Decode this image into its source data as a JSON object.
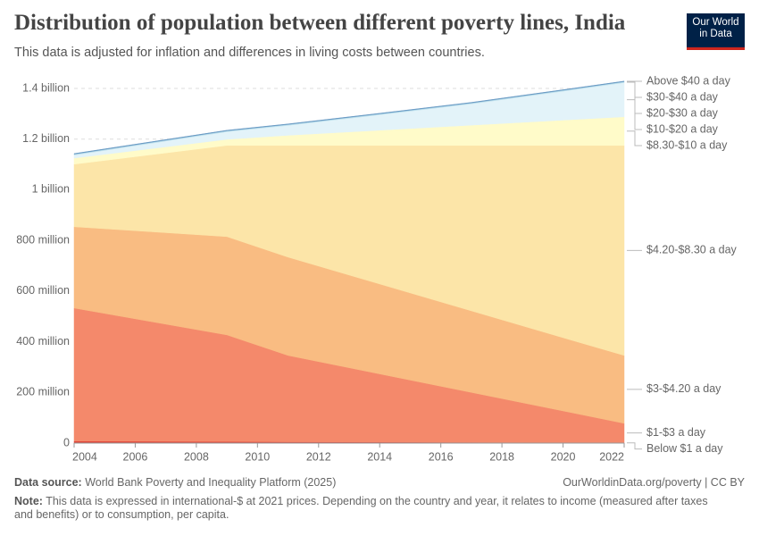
{
  "chart_data": {
    "type": "stacked-area",
    "title": "Distribution of population between different poverty lines, India",
    "subtitle": "This data is adjusted for inflation and differences in living costs between countries.",
    "logo": [
      "Our World",
      "in Data"
    ],
    "x": [
      2004,
      2009,
      2011,
      2014,
      2017,
      2020,
      2022
    ],
    "xlim": [
      2004,
      2022
    ],
    "xticks": [
      2004,
      2006,
      2008,
      2010,
      2012,
      2014,
      2016,
      2018,
      2020,
      2022
    ],
    "ylim": [
      0,
      1400000000
    ],
    "yticks": [
      0,
      {
        "value": 200000000,
        "label": "200 million"
      },
      {
        "value": 400000000,
        "label": "400 million"
      },
      {
        "value": 600000000,
        "label": "600 million"
      },
      {
        "value": 800000000,
        "label": "800 million"
      },
      {
        "value": 1000000000,
        "label": "1 billion"
      },
      {
        "value": 1200000000,
        "label": "1.2 billion"
      },
      {
        "value": 1400000000,
        "label": "1.4 billion"
      }
    ],
    "grid": true,
    "series": [
      {
        "name": "Below $1 a day",
        "color": "#e0473a",
        "label_color": "#c8352b",
        "values": [
          8000000,
          6000000,
          5000000,
          4000000,
          3000000,
          2000000,
          2000000
        ]
      },
      {
        "name": "$1-$3 a day",
        "color": "#f4896b",
        "label_color": "#d7402f",
        "values": [
          525000000,
          421000000,
          341000000,
          269000000,
          197000000,
          125000000,
          76000000
        ]
      },
      {
        "name": "$3-$4.20 a day",
        "color": "#f9bc82",
        "label_color": "#d9914a",
        "values": [
          321000000,
          388000000,
          388000000,
          355000000,
          322000000,
          289000000,
          268000000
        ]
      },
      {
        "name": "$4.20-$8.30 a day",
        "color": "#fce5a8",
        "label_color": "#c8a24f",
        "values": [
          247000000,
          360000000,
          441000000,
          547000000,
          653000000,
          759000000,
          829000000
        ]
      },
      {
        "name": "$8.30-$10 a day",
        "color": "#fffbc9",
        "label_color": "#bfa85e",
        "values": [
          24000000,
          24000000,
          40000000,
          60000000,
          80000000,
          100000000,
          113000000
        ]
      },
      {
        "name": "$10-$20 a day",
        "color": "#e3f3f9",
        "label_color": "#8fb7c9",
        "values": [
          12000000,
          30000000,
          39000000,
          61000000,
          84000000,
          114000000,
          135000000
        ]
      },
      {
        "name": "$20-$30 a day",
        "color": "#c3e3ee",
        "label_color": "#7fb4cd",
        "values": [
          3000000,
          3000000,
          3000000,
          3000000,
          3000000,
          3000000,
          3000000
        ]
      },
      {
        "name": "$30-$40 a day",
        "color": "#9ccbe0",
        "label_color": "#6a9ac4",
        "values": [
          1000000,
          1000000,
          1000000,
          1000000,
          1000000,
          1000000,
          1000000
        ]
      },
      {
        "name": "Above $40 a day",
        "color": "#6a9ac4",
        "label_color": "#3d6fa8",
        "values": [
          2000000,
          2000000,
          2000000,
          2000000,
          2000000,
          2000000,
          2000000
        ]
      }
    ],
    "source_label": "Data source:",
    "source": "World Bank Poverty and Inequality Platform (2025)",
    "url": "OurWorldinData.org/poverty | CC BY",
    "note_label": "Note:",
    "note": "This data is expressed in international-$ at 2021 prices. Depending on the country and year, it relates to income (measured after taxes and benefits) or to consumption, per capita."
  }
}
